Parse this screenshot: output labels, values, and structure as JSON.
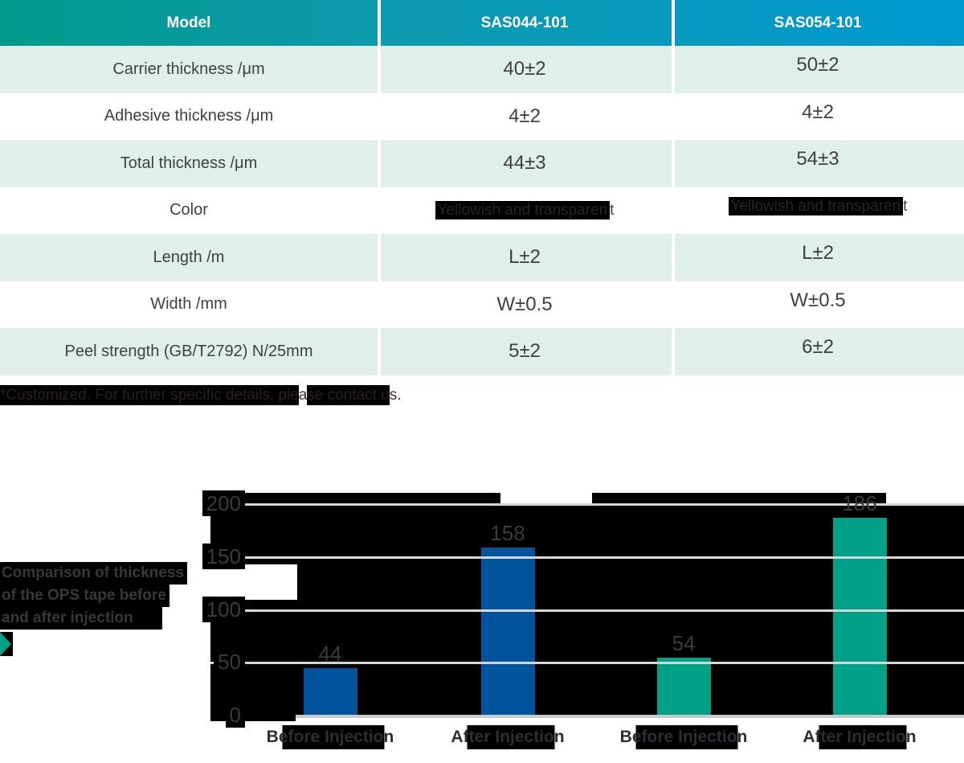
{
  "table": {
    "header": [
      "Model",
      "SAS044-101",
      "SAS054-101"
    ],
    "rows": [
      {
        "label": "Carrier thickness /μm",
        "col2_hl": "",
        "col2_tail": "40±2",
        "col3_hl": "",
        "col3_tail": "50±2"
      },
      {
        "label": "Adhesive thickness /μm",
        "col2_hl": "",
        "col2_tail": "4±2",
        "col3_hl": "",
        "col3_tail": "4±2"
      },
      {
        "label": "Total thickness /μm",
        "col2_hl": "",
        "col2_tail": "44±3",
        "col3_hl": "",
        "col3_tail": "54±3"
      },
      {
        "label": "Color",
        "col2_hl": "Yellowish and transparen",
        "col2_tail": "t",
        "col3_hl": "Yellowish and transparen",
        "col3_tail": "t"
      },
      {
        "label": "Length /m",
        "col2_hl": "",
        "col2_tail": "L±2",
        "col3_hl": "",
        "col3_tail": "L±2"
      },
      {
        "label": "Width /mm",
        "col2_hl": "",
        "col2_tail": "W±0.5",
        "col3_hl": "",
        "col3_tail": "W±0.5"
      },
      {
        "label": "Peel strength (GB/T2792) N/25mm",
        "col2_hl": "",
        "col2_tail": "5±2",
        "col3_hl": "",
        "col3_tail": "6±2"
      }
    ]
  },
  "footnote": {
    "text": "*Customized. For further specific details, please contact us.",
    "part1": "*Customized. For further specific details, ple",
    "part2": "a",
    "part3": "se contact u",
    "part4": "s."
  },
  "colors": {
    "header_gradient_start": "#009a8b",
    "header_gradient_end": "#0099d0",
    "row_stripe": "#e1efeb",
    "bar_blue": "#01539e",
    "bar_teal": "#00a089"
  },
  "chart_data": {
    "type": "bar",
    "title": "Comparison of thickness of the OPS tape before and after injection",
    "title_lines": [
      "Comparison of thickness",
      "of the OPS tape before",
      "and after injection"
    ],
    "categories": [
      "Before Injection",
      "After Injection",
      "Before Injection",
      "After Injection"
    ],
    "values": [
      44,
      158,
      54,
      186
    ],
    "value_labels": [
      "44",
      "158",
      "54",
      "186"
    ],
    "bar_colors": [
      "#01539e",
      "#01539e",
      "#00a089",
      "#00a089"
    ],
    "yticks": [
      0,
      50,
      100,
      150,
      200
    ],
    "ylim": [
      0,
      200
    ],
    "grid": true,
    "legend": "none",
    "xlabel": "",
    "ylabel": ""
  }
}
